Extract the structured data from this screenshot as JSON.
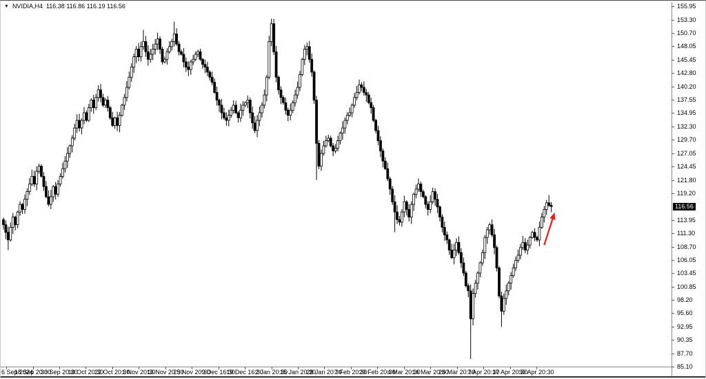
{
  "window": {
    "expand_arrow": "▼",
    "symbol_label": "NVIDIA,H4",
    "ohlc_quote": "116.38 116.86 116.19 116.56"
  },
  "chart_data": {
    "type": "candlestick",
    "symbol": "NVIDIA",
    "timeframe": "H4",
    "title": "NVIDIA,H4",
    "ohlc_current": {
      "open": 116.38,
      "high": 116.86,
      "low": 116.19,
      "close": 116.56
    },
    "current_price": "116.56",
    "ylim": [
      85.1,
      155.95
    ],
    "grid": false,
    "y_axis_labels": [
      "155.95",
      "153.30",
      "150.70",
      "148.05",
      "145.45",
      "142.80",
      "140.20",
      "137.55",
      "134.95",
      "132.30",
      "129.70",
      "127.05",
      "124.45",
      "121.80",
      "119.20",
      "113.95",
      "111.30",
      "108.70",
      "106.05",
      "103.45",
      "100.85",
      "98.20",
      "95.60",
      "92.95",
      "90.35",
      "87.70",
      "85.10"
    ],
    "x_axis_labels": [
      "6 Sep 2024",
      "18 Sep 20:30",
      "30 Sep 20:30",
      "10 Oct 20:30",
      "22 Oct 20:30",
      "1 Nov 20:30",
      "13 Nov 20:30",
      "25 Nov 20:30",
      "9 Dec 16:30",
      "19 Dec 16:30",
      "2 Jan 20:30",
      "15 Jan 20:30",
      "28 Jan 20:30",
      "7 Feb 20:30",
      "20 Feb 20:30",
      "4 Mar 20:30",
      "14 Mar 20:30",
      "26 Mar 20:30",
      "7 Apr 20:30",
      "17 Apr 20:30",
      "30 Apr 20:30"
    ],
    "first_open": 114.0,
    "closes": [
      113.0,
      111.5,
      110.0,
      112.5,
      114.5,
      113.0,
      115.5,
      117.0,
      116.0,
      118.0,
      119.5,
      121.0,
      122.5,
      121.0,
      123.5,
      124.5,
      122.5,
      120.5,
      118.5,
      117.0,
      118.5,
      120.5,
      119.0,
      121.0,
      122.5,
      124.0,
      125.5,
      127.0,
      128.5,
      130.0,
      132.0,
      133.5,
      132.0,
      133.5,
      135.0,
      133.5,
      136.0,
      137.5,
      136.0,
      138.0,
      139.5,
      138.0,
      136.5,
      137.5,
      136.0,
      134.0,
      132.5,
      134.0,
      132.5,
      134.5,
      136.5,
      138.0,
      140.0,
      142.0,
      144.0,
      146.0,
      147.5,
      146.0,
      148.0,
      149.0,
      147.0,
      145.5,
      146.5,
      147.5,
      148.5,
      149.5,
      147.5,
      145.0,
      145.5,
      147.0,
      148.0,
      149.0,
      150.5,
      148.5,
      147.0,
      146.5,
      145.0,
      144.0,
      143.5,
      145.0,
      145.5,
      146.5,
      147.0,
      145.5,
      144.5,
      144.0,
      143.0,
      142.0,
      141.0,
      139.0,
      137.5,
      136.5,
      135.0,
      134.0,
      133.5,
      134.5,
      135.5,
      136.5,
      135.0,
      134.0,
      135.5,
      136.5,
      137.0,
      137.5,
      135.0,
      133.0,
      131.5,
      133.5,
      135.0,
      136.5,
      138.5,
      142.0,
      149.0,
      152.5,
      147.0,
      142.0,
      139.5,
      138.0,
      137.0,
      135.5,
      134.5,
      135.5,
      137.0,
      138.5,
      140.0,
      142.5,
      145.5,
      147.5,
      148.0,
      145.5,
      143.0,
      137.5,
      129.0,
      124.5,
      127.0,
      128.5,
      129.5,
      130.0,
      128.5,
      127.5,
      128.0,
      129.5,
      131.0,
      132.0,
      133.5,
      134.5,
      135.0,
      136.5,
      138.0,
      139.0,
      140.5,
      140.0,
      139.0,
      138.5,
      137.0,
      136.0,
      133.5,
      131.5,
      129.5,
      127.5,
      125.5,
      124.0,
      122.0,
      120.0,
      117.5,
      115.5,
      114.0,
      113.5,
      115.5,
      117.5,
      116.0,
      114.5,
      117.0,
      119.0,
      120.0,
      121.0,
      119.5,
      118.5,
      117.0,
      116.0,
      117.5,
      119.5,
      118.0,
      116.5,
      114.5,
      112.5,
      111.0,
      110.0,
      108.0,
      106.5,
      108.0,
      109.5,
      107.5,
      105.5,
      103.5,
      101.0,
      100.0,
      94.5,
      99.5,
      101.5,
      103.5,
      105.5,
      107.5,
      110.5,
      112.0,
      113.0,
      111.0,
      108.5,
      104.5,
      99.0,
      96.0,
      98.5,
      100.0,
      101.5,
      103.0,
      104.5,
      106.0,
      107.0,
      108.5,
      109.5,
      108.0,
      109.0,
      110.5,
      111.5,
      110.5,
      110.0,
      112.5,
      114.5,
      116.0,
      117.3,
      116.8,
      116.56
    ],
    "spikes": [
      {
        "i": 2,
        "low": 108.0
      },
      {
        "i": 59,
        "high": 151.3
      },
      {
        "i": 72,
        "high": 152.9
      },
      {
        "i": 113,
        "high": 153.5
      },
      {
        "i": 132,
        "low": 121.8
      },
      {
        "i": 165,
        "low": 111.5
      },
      {
        "i": 197,
        "low": 86.6
      },
      {
        "i": 210,
        "low": 92.9
      },
      {
        "i": 230,
        "high": 118.8
      }
    ],
    "annotations": [
      {
        "type": "arrow",
        "from": {
          "bar": 228.0,
          "price": 109.0
        },
        "to": {
          "bar": 232.4,
          "price": 115.4
        },
        "color": "#ee1c12"
      }
    ],
    "colors": {
      "bull_body": "#ffffff",
      "bear_body": "#000000",
      "outline": "#000000",
      "axis_line": "#8a8a8a",
      "price_tag_bg": "#000000",
      "price_tag_text": "#ffffff"
    }
  }
}
